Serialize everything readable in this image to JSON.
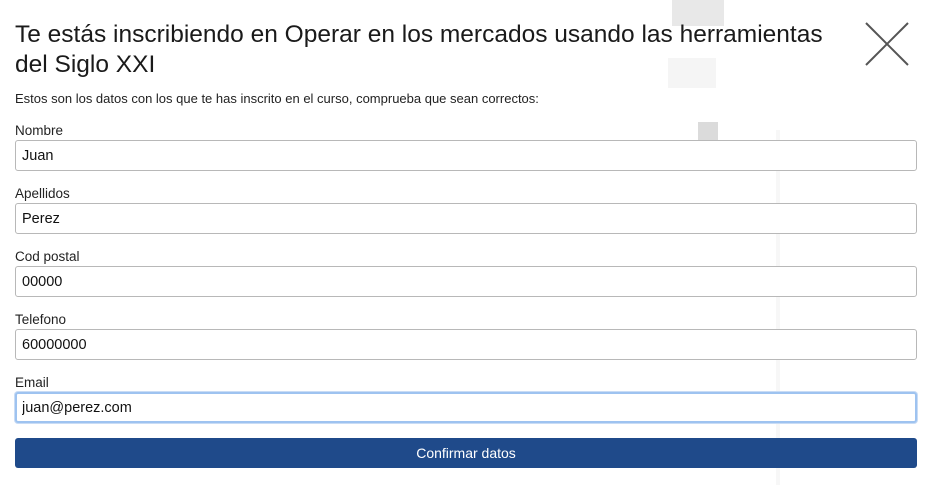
{
  "modal": {
    "title": "Te estás inscribiendo en Operar en los mercados usando las herramientas del Siglo XXI",
    "subtitle": "Estos son los datos con los que te has inscrito en el curso, comprueba que sean correctos:",
    "close_icon": "close-icon"
  },
  "form": {
    "fields": [
      {
        "label": "Nombre",
        "value": "Juan"
      },
      {
        "label": "Apellidos",
        "value": "Perez"
      },
      {
        "label": "Cod postal",
        "value": "00000"
      },
      {
        "label": "Telefono",
        "value": "60000000"
      },
      {
        "label": "Email",
        "value": "juan@perez.com"
      }
    ],
    "submit_label": "Confirmar datos"
  },
  "colors": {
    "button_bg": "#1f4a8a",
    "button_text": "#ffffff",
    "focus_border": "#9ec3f0",
    "input_border": "#b8b8b8"
  }
}
